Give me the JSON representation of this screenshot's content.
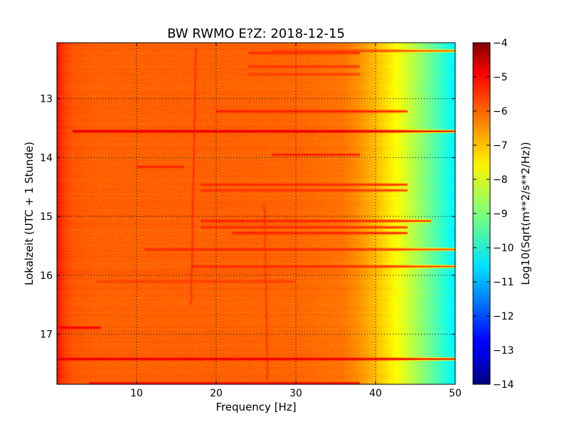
{
  "chart_data": {
    "type": "heatmap",
    "title": "BW RWMO E?Z: 2018-12-15",
    "xlabel": "Frequency [Hz]",
    "ylabel": "Lokalzeit (UTC + 1 Stunde)",
    "xlim": [
      0,
      50
    ],
    "ylim_hours": [
      12.05,
      17.85
    ],
    "y_inverted": true,
    "grid": true,
    "x_ticks": [
      10,
      20,
      30,
      40,
      50
    ],
    "x_tick_labels": [
      "10",
      "20",
      "30",
      "40",
      "50"
    ],
    "y_ticks": [
      13,
      14,
      15,
      16,
      17
    ],
    "y_tick_labels": [
      "13",
      "14",
      "15",
      "16",
      "17"
    ],
    "colormap": "jet",
    "colorbar": {
      "label": "Log10(Sqrt(m**2/s**2/Hz))",
      "range": [
        -14,
        -4
      ],
      "ticks": [
        -4,
        -5,
        -6,
        -7,
        -8,
        -9,
        -10,
        -11,
        -12,
        -13,
        -14
      ],
      "tick_labels": [
        "−4",
        "−5",
        "−6",
        "−7",
        "−8",
        "−9",
        "−10",
        "−11",
        "−12",
        "−13",
        "−14"
      ]
    },
    "spectral_profile": {
      "frequency_hz": [
        0,
        0.3,
        1.0,
        2,
        5,
        10,
        20,
        30,
        36,
        38,
        40,
        42,
        44,
        46,
        48,
        49.5,
        50
      ],
      "level": [
        -5.2,
        -5.6,
        -5.9,
        -6.1,
        -6.2,
        -6.2,
        -6.2,
        -6.25,
        -6.4,
        -6.7,
        -7.1,
        -7.6,
        -8.2,
        -8.9,
        -9.6,
        -10.2,
        -10.4
      ]
    },
    "horizontal_bands": [
      {
        "time_hours": 12.18,
        "f_start": 27,
        "f_end": 50,
        "level": -5.9
      },
      {
        "time_hours": 12.22,
        "f_start": 24,
        "f_end": 38,
        "level": -5.6
      },
      {
        "time_hours": 12.45,
        "f_start": 24,
        "f_end": 38,
        "level": -5.7
      },
      {
        "time_hours": 12.58,
        "f_start": 24,
        "f_end": 38,
        "level": -5.8
      },
      {
        "time_hours": 13.21,
        "f_start": 20,
        "f_end": 44,
        "level": -5.5
      },
      {
        "time_hours": 13.55,
        "f_start": 2,
        "f_end": 50,
        "level": -4.8
      },
      {
        "time_hours": 13.95,
        "f_start": 27,
        "f_end": 38,
        "level": -5.5
      },
      {
        "time_hours": 14.15,
        "f_start": 10,
        "f_end": 16,
        "level": -5.5
      },
      {
        "time_hours": 14.45,
        "f_start": 18,
        "f_end": 44,
        "level": -5.6
      },
      {
        "time_hours": 14.55,
        "f_start": 18,
        "f_end": 44,
        "level": -5.7
      },
      {
        "time_hours": 15.07,
        "f_start": 18,
        "f_end": 47,
        "level": -5.5
      },
      {
        "time_hours": 15.18,
        "f_start": 18,
        "f_end": 44,
        "level": -5.6
      },
      {
        "time_hours": 15.28,
        "f_start": 22,
        "f_end": 44,
        "level": -5.5
      },
      {
        "time_hours": 15.55,
        "f_start": 11,
        "f_end": 50,
        "level": -5.6
      },
      {
        "time_hours": 15.85,
        "f_start": 17,
        "f_end": 50,
        "level": -5.6
      },
      {
        "time_hours": 16.1,
        "f_start": 5,
        "f_end": 30,
        "level": -5.8
      },
      {
        "time_hours": 16.88,
        "f_start": 0,
        "f_end": 5.5,
        "level": -5.1
      },
      {
        "time_hours": 17.42,
        "f_start": 0,
        "f_end": 50,
        "level": -4.9
      },
      {
        "time_hours": 17.82,
        "f_start": 4,
        "f_end": 38,
        "level": -5.3
      }
    ],
    "vertical_lines": [
      {
        "f_start": 17.4,
        "f_end": 16.8,
        "t_start": 12.15,
        "t_end": 16.5,
        "level": -5.5
      },
      {
        "f_start": 26.0,
        "f_end": 26.4,
        "t_start": 14.8,
        "t_end": 17.8,
        "level": -5.6
      }
    ]
  }
}
